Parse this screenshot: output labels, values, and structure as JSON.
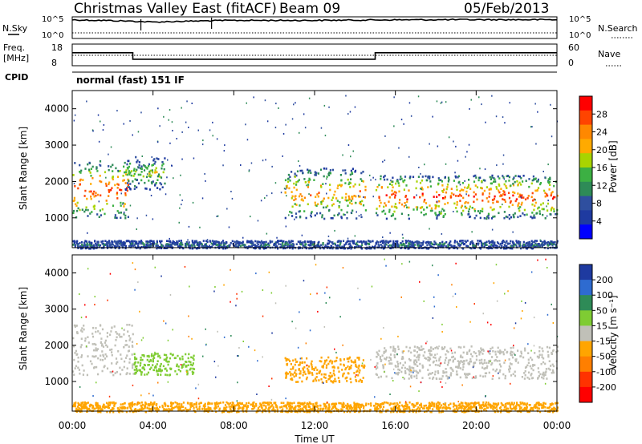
{
  "header": {
    "title": "Christmas Valley East (fitACF)",
    "beam": "Beam 09",
    "date": "05/Feb/2013"
  },
  "noise_panel": {
    "left_label": "N.Sky",
    "right_label": "N.Search",
    "left_ticks": [
      "10^5",
      "10^0"
    ],
    "right_ticks": [
      "10^5",
      "10^0"
    ]
  },
  "freq_panel": {
    "left_label_1": "Freq.",
    "left_label_2": "[MHz]",
    "right_label": "Nave",
    "left_ticks": [
      "18",
      "8"
    ],
    "right_ticks": [
      "60",
      "0"
    ],
    "cpid_label": "CPID",
    "cpid_value": "normal (fast) 151 IF"
  },
  "power_panel": {
    "ylabel": "Slant Range [km]",
    "yticks": [
      "4000",
      "3000",
      "2000",
      "1000"
    ],
    "cbar_label": "Power [dB]",
    "cbar_ticks": [
      "28",
      "24",
      "20",
      "16",
      "12",
      "8",
      "4"
    ],
    "cbar_colors": [
      "#ff0000",
      "#ff4400",
      "#ff8800",
      "#ffaa00",
      "#a8d400",
      "#3cb043",
      "#2e8b57",
      "#2f4f9f",
      "#1e3aa0",
      "#0000ff"
    ]
  },
  "velocity_panel": {
    "ylabel": "Slant Range [km]",
    "yticks": [
      "4000",
      "3000",
      "2000",
      "1000"
    ],
    "cbar_label": "Velocity [m s⁻¹]",
    "cbar_ticks": [
      "200",
      "100",
      "50",
      "15",
      "-15",
      "-50",
      "-100",
      "-200"
    ],
    "cbar_colors": [
      "#1e3aa0",
      "#2e6bd0",
      "#2e8b57",
      "#7fcc33",
      "#c0c0b8",
      "#ffa500",
      "#ff7f00",
      "#ff3300",
      "#ff0000"
    ]
  },
  "xaxis": {
    "ticks": [
      "00:00",
      "04:00",
      "08:00",
      "12:00",
      "16:00",
      "20:00",
      "00:00"
    ],
    "label": "Time UT"
  },
  "chart_data": [
    {
      "type": "line",
      "title": "N.Sky / N.Search",
      "x": [
        "00:00",
        "04:00",
        "08:00",
        "12:00",
        "16:00",
        "20:00",
        "24:00"
      ],
      "series": [
        {
          "name": "N.Sky",
          "values": [
            20000,
            6000,
            15000,
            15000,
            20000,
            22000,
            22000
          ]
        }
      ]
    },
    {
      "type": "line",
      "title": "Freq.",
      "x": [
        "00:00",
        "03:00",
        "03:00",
        "15:00",
        "15:00",
        "24:00"
      ],
      "series": [
        {
          "name": "Freq.",
          "values": [
            14,
            14,
            11,
            11,
            14,
            14
          ]
        }
      ]
    },
    {
      "type": "heatmap",
      "title": "Power",
      "xlabel": "Time UT",
      "ylabel": "Slant Range [km]",
      "ylim": [
        180,
        4500
      ],
      "clim": [
        0,
        30
      ],
      "regions": [
        {
          "t_start": 0.0,
          "t_end": 2.8,
          "range_lo": 1000,
          "range_hi": 2600,
          "peak_db": 28
        },
        {
          "t_start": 2.6,
          "t_end": 4.6,
          "range_lo": 1800,
          "range_hi": 2700,
          "peak_db": 16
        },
        {
          "t_start": 10.5,
          "t_end": 14.5,
          "range_lo": 1000,
          "range_hi": 2400,
          "peak_db": 24
        },
        {
          "t_start": 15.0,
          "t_end": 24.0,
          "range_lo": 1000,
          "range_hi": 2200,
          "peak_db": 28
        },
        {
          "t_start": 0.0,
          "t_end": 24.0,
          "range_lo": 180,
          "range_hi": 400,
          "peak_db": 8
        }
      ]
    },
    {
      "type": "heatmap",
      "title": "Velocity",
      "xlabel": "Time UT",
      "ylabel": "Slant Range [km]",
      "ylim": [
        180,
        4500
      ],
      "clim": [
        -200,
        200
      ],
      "regions": [
        {
          "t_start": 0.0,
          "t_end": 3.0,
          "range_lo": 1200,
          "range_hi": 2600,
          "vel": 0
        },
        {
          "t_start": 3.0,
          "t_end": 6.0,
          "range_lo": 1200,
          "range_hi": 1800,
          "vel": 50
        },
        {
          "t_start": 10.5,
          "t_end": 14.5,
          "range_lo": 1000,
          "range_hi": 1700,
          "vel": -50
        },
        {
          "t_start": 15.0,
          "t_end": 24.0,
          "range_lo": 1100,
          "range_hi": 2000,
          "vel": 0
        },
        {
          "t_start": 0.0,
          "t_end": 24.0,
          "range_lo": 180,
          "range_hi": 450,
          "vel": -50
        }
      ]
    }
  ]
}
